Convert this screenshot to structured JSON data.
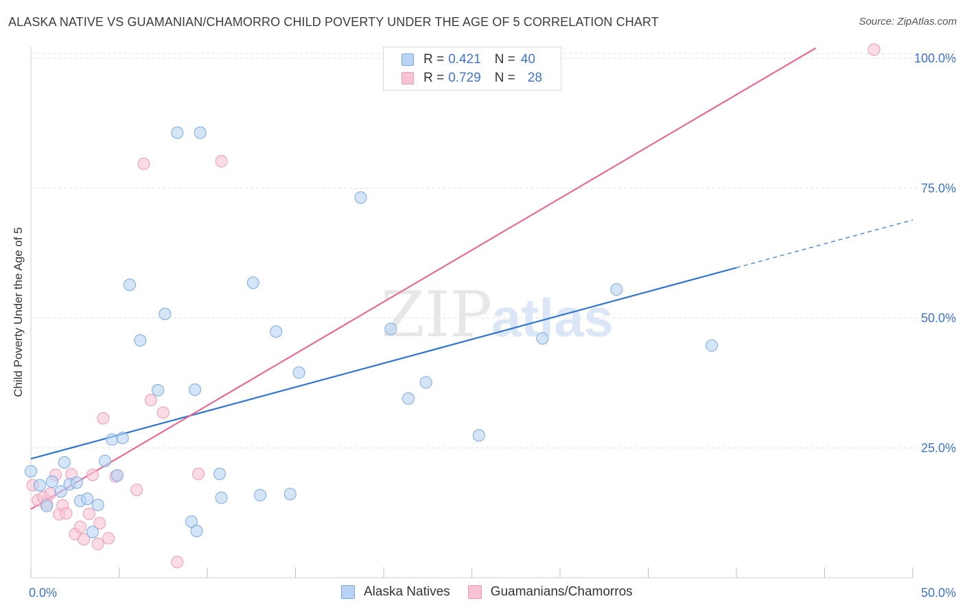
{
  "header": {
    "title": "ALASKA NATIVE VS GUAMANIAN/CHAMORRO CHILD POVERTY UNDER THE AGE OF 5 CORRELATION CHART",
    "source": "Source: ZipAtlas.com"
  },
  "watermark": {
    "zip": "ZIP",
    "atlas": "atlas"
  },
  "legend": {
    "rows": [
      {
        "r_label": "R =",
        "r_value": "0.421",
        "n_label": "N =",
        "n_value": "40"
      },
      {
        "r_label": "R =",
        "r_value": "0.729",
        "n_label": "N =",
        "n_value": "28"
      }
    ]
  },
  "colors": {
    "blue_fill": "#b8d3f3",
    "blue_stroke": "#7aa7e0",
    "blue_line": "#2f74cc",
    "pink_fill": "#f8c3d3",
    "pink_stroke": "#ee9ab4",
    "pink_line": "#e46a93",
    "grid": "#dddddd",
    "tick_text": "#3d74c7"
  },
  "chart_data": {
    "type": "scatter",
    "title": "ALASKA NATIVE VS GUAMANIAN/CHAMORRO CHILD POVERTY UNDER THE AGE OF 5 CORRELATION CHART",
    "xlabel": "",
    "ylabel": "Child Poverty Under the Age of 5",
    "xlim": [
      0,
      50
    ],
    "ylim": [
      0,
      102
    ],
    "x_tick_labels": [
      {
        "value": 0,
        "label": "0.0%"
      },
      {
        "value": 50,
        "label": "50.0%"
      }
    ],
    "x_minor_ticks": [
      0,
      5,
      10,
      15,
      20,
      25,
      30,
      35,
      40,
      45,
      50
    ],
    "y_ticks": [
      {
        "value": 25,
        "label": "25.0%"
      },
      {
        "value": 50,
        "label": "50.0%"
      },
      {
        "value": 75,
        "label": "75.0%"
      },
      {
        "value": 100,
        "label": "100.0%"
      }
    ],
    "grid": true,
    "series": [
      {
        "name": "Alaska Natives",
        "color": "blue",
        "r": 0.421,
        "n": 40,
        "points": [
          [
            0.0,
            20.5
          ],
          [
            0.5,
            17.8
          ],
          [
            0.9,
            13.8
          ],
          [
            1.2,
            18.5
          ],
          [
            1.7,
            16.6
          ],
          [
            1.9,
            22.2
          ],
          [
            2.2,
            18.0
          ],
          [
            2.6,
            18.3
          ],
          [
            2.8,
            14.8
          ],
          [
            3.2,
            15.2
          ],
          [
            3.5,
            8.8
          ],
          [
            3.8,
            14.0
          ],
          [
            4.2,
            22.5
          ],
          [
            4.6,
            26.6
          ],
          [
            4.9,
            19.7
          ],
          [
            5.2,
            26.9
          ],
          [
            5.6,
            56.4
          ],
          [
            6.2,
            45.7
          ],
          [
            7.2,
            36.1
          ],
          [
            7.6,
            50.8
          ],
          [
            8.3,
            85.7
          ],
          [
            9.1,
            10.8
          ],
          [
            9.4,
            9.0
          ],
          [
            9.3,
            36.2
          ],
          [
            9.6,
            85.7
          ],
          [
            10.7,
            20.0
          ],
          [
            10.8,
            15.4
          ],
          [
            12.6,
            56.8
          ],
          [
            13.0,
            15.9
          ],
          [
            13.9,
            47.4
          ],
          [
            14.7,
            16.1
          ],
          [
            15.2,
            39.5
          ],
          [
            18.7,
            73.2
          ],
          [
            20.4,
            47.9
          ],
          [
            21.4,
            34.5
          ],
          [
            22.4,
            37.6
          ],
          [
            25.4,
            27.4
          ],
          [
            29.0,
            46.1
          ],
          [
            33.2,
            55.5
          ],
          [
            38.6,
            44.7
          ]
        ],
        "trend": {
          "x0": 0,
          "y0": 22.9,
          "x_solid_end": 40,
          "x1": 50,
          "y1": 68.9
        }
      },
      {
        "name": "Guamanians/Chamorros",
        "color": "pink",
        "r": 0.729,
        "n": 28,
        "points": [
          [
            0.1,
            17.8
          ],
          [
            0.4,
            14.9
          ],
          [
            0.7,
            15.5
          ],
          [
            0.9,
            14.2
          ],
          [
            1.1,
            16.2
          ],
          [
            1.4,
            19.8
          ],
          [
            1.6,
            12.2
          ],
          [
            1.8,
            13.9
          ],
          [
            2.0,
            12.4
          ],
          [
            2.3,
            19.9
          ],
          [
            2.5,
            8.4
          ],
          [
            2.8,
            9.8
          ],
          [
            3.0,
            7.4
          ],
          [
            3.3,
            12.3
          ],
          [
            3.5,
            19.8
          ],
          [
            3.8,
            6.5
          ],
          [
            3.9,
            10.5
          ],
          [
            4.1,
            30.7
          ],
          [
            4.4,
            7.6
          ],
          [
            4.8,
            19.5
          ],
          [
            6.0,
            16.9
          ],
          [
            6.4,
            79.7
          ],
          [
            6.8,
            34.2
          ],
          [
            7.5,
            31.8
          ],
          [
            8.3,
            3.0
          ],
          [
            9.5,
            20.0
          ],
          [
            10.8,
            80.2
          ],
          [
            47.8,
            101.7
          ]
        ],
        "trend": {
          "x0": 0,
          "y0": 13.2,
          "x1": 44.5,
          "y1": 102.0
        }
      }
    ]
  },
  "bottom_legend": {
    "items": [
      {
        "label": "Alaska Natives"
      },
      {
        "label": "Guamanians/Chamorros"
      }
    ]
  }
}
